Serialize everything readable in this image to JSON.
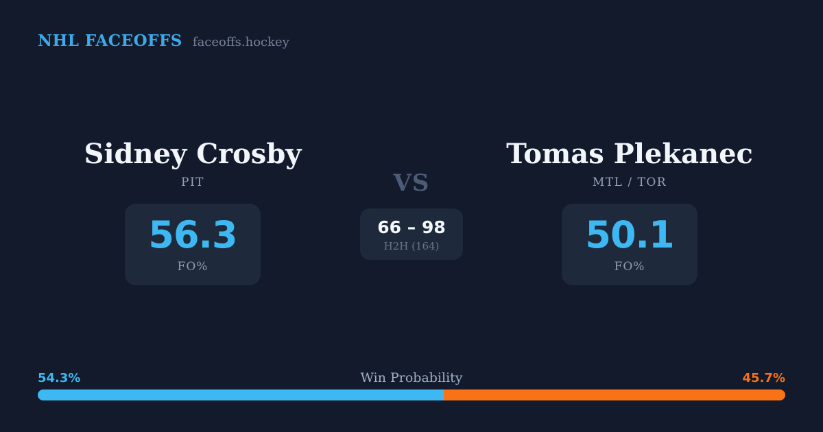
{
  "brand": {
    "title": "NHL FACEOFFS",
    "domain": "faceoffs.hockey"
  },
  "player_left": {
    "name": "Sidney Crosby",
    "team": "PIT",
    "fo_pct": "56.3",
    "stat_label": "FO%"
  },
  "matchup": {
    "vs_label": "VS",
    "h2h_score": "66 – 98",
    "h2h_label": "H2H (164)"
  },
  "player_right": {
    "name": "Tomas Plekanec",
    "team": "MTL / TOR",
    "fo_pct": "50.1",
    "stat_label": "FO%"
  },
  "win_probability": {
    "title": "Win Probability",
    "left_pct_label": "54.3%",
    "right_pct_label": "45.7%",
    "left_value": 54.3,
    "right_value": 45.7
  },
  "colors": {
    "background": "#121A2B",
    "card": "#1E2A3B",
    "brand_blue": "#3DA9E8",
    "accent_blue": "#3EB8F2",
    "accent_orange": "#F97316"
  }
}
